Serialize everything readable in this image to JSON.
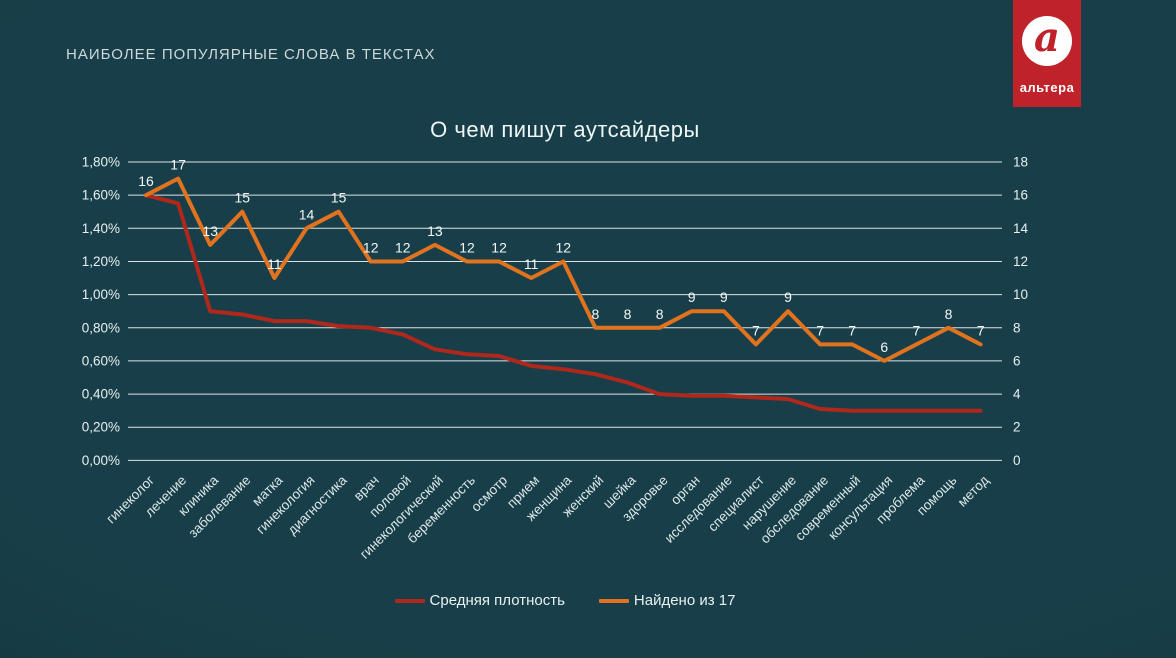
{
  "header": {
    "title": "НАИБОЛЕЕ ПОПУЛЯРНЫЕ СЛОВА В ТЕКСТАХ"
  },
  "logo": {
    "glyph": "a",
    "wordmark": "альтера",
    "background_color": "#c0222a",
    "glyph_color": "#c0222a"
  },
  "chart_data": {
    "type": "line",
    "title": "О чем пишут аутсайдеры",
    "categories": [
      "гинеколог",
      "лечение",
      "клиника",
      "заболевание",
      "матка",
      "гинекология",
      "диагностика",
      "врач",
      "половой",
      "гинекологический",
      "беременность",
      "осмотр",
      "прием",
      "женщина",
      "женский",
      "шейка",
      "здоровье",
      "орган",
      "исследование",
      "специалист",
      "нарушение",
      "обследование",
      "современный",
      "консультация",
      "проблема",
      "помощь",
      "метод"
    ],
    "series": [
      {
        "name": "Средняя плотность",
        "axis": "left",
        "color": "#b0271b",
        "values": [
          1.6,
          1.55,
          0.9,
          0.88,
          0.84,
          0.84,
          0.81,
          0.8,
          0.76,
          0.67,
          0.64,
          0.63,
          0.57,
          0.55,
          0.52,
          0.47,
          0.4,
          0.39,
          0.39,
          0.38,
          0.37,
          0.31,
          0.3,
          0.3,
          0.3,
          0.3,
          0.3
        ],
        "data_labels": false
      },
      {
        "name": "Найдено из 17",
        "axis": "right",
        "color": "#e1731f",
        "values": [
          16,
          17,
          13,
          15,
          11,
          14,
          15,
          12,
          12,
          13,
          12,
          12,
          11,
          12,
          8,
          8,
          8,
          9,
          9,
          7,
          9,
          7,
          7,
          6,
          7,
          8,
          7
        ],
        "data_labels": true
      }
    ],
    "left_axis": {
      "min": 0,
      "max": 1.8,
      "labels_top_to_bottom": [
        "1,80%",
        "1,60%",
        "1,40%",
        "1,20%",
        "1,00%",
        "0,80%",
        "0,60%",
        "0,40%",
        "0,20%",
        "0,00%"
      ]
    },
    "right_axis": {
      "min": 0,
      "max": 18,
      "labels_top_to_bottom": [
        "18",
        "16",
        "14",
        "12",
        "10",
        "8",
        "6",
        "4",
        "2",
        "0"
      ]
    },
    "grid": true,
    "legend_position": "bottom"
  }
}
